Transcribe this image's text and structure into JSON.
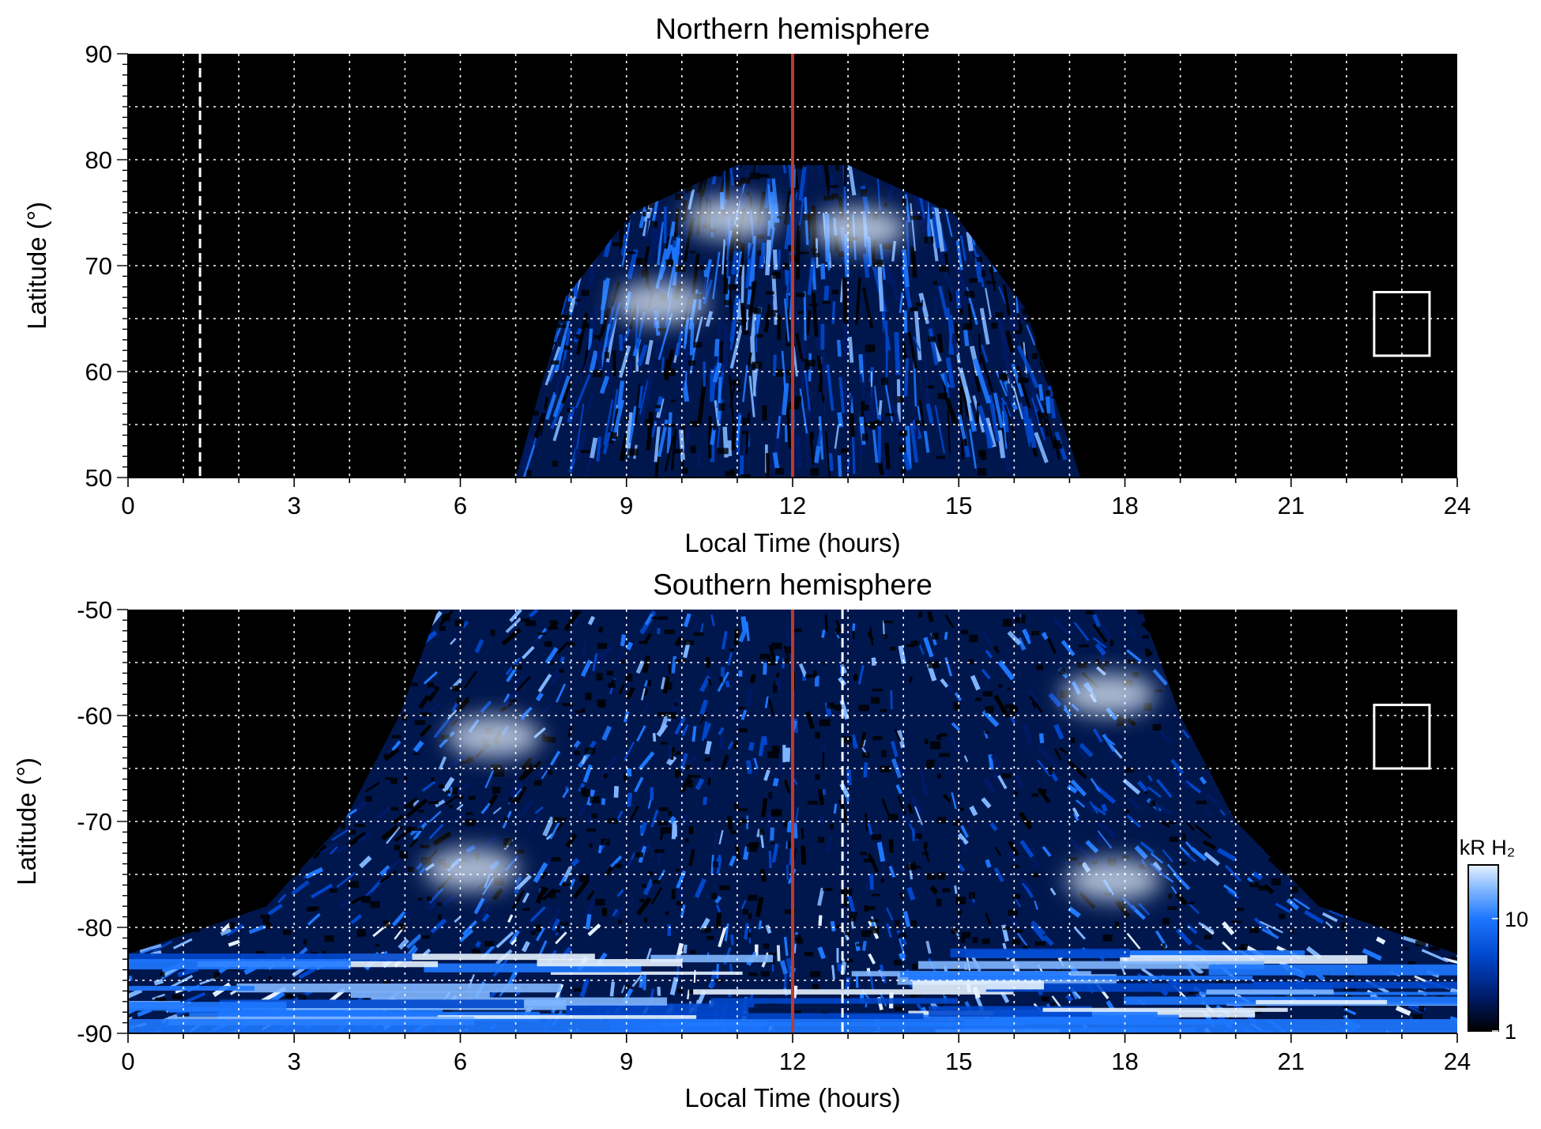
{
  "chart_data": [
    {
      "type": "heatmap",
      "title": "Northern hemisphere",
      "xlabel": "Local Time (hours)",
      "ylabel": "Latitude (°)",
      "xlim": [
        0,
        24
      ],
      "ylim": [
        50,
        90
      ],
      "xticks": [
        "0",
        "3",
        "6",
        "9",
        "12",
        "15",
        "18",
        "21",
        "24"
      ],
      "yticks": [
        "50",
        "60",
        "70",
        "80",
        "90"
      ],
      "grid": true,
      "dark_color": "#000000",
      "emission_region": {
        "local_time_range": [
          7.0,
          17.2
        ],
        "edge_latitudes_deg": [
          50,
          67,
          75,
          79.5,
          79.5,
          75,
          66,
          50
        ],
        "edge_local_times_h": [
          7.0,
          7.9,
          9.1,
          11.0,
          13.0,
          14.9,
          16.2,
          17.2
        ]
      },
      "bright_features": [
        {
          "local_time_h": 9.6,
          "latitude_deg": 66.5,
          "intensity_kR": 30
        },
        {
          "local_time_h": 13.2,
          "latitude_deg": 73.5,
          "intensity_kR": 30
        },
        {
          "local_time_h": 10.9,
          "latitude_deg": 74.5,
          "intensity_kR": 20
        }
      ],
      "reference_lines": [
        {
          "name": "noon",
          "local_time_h": 12.0,
          "color": "#c0392b",
          "style": "solid"
        },
        {
          "local_time_h": 1.3,
          "color": "#ffffff",
          "style": "dashed"
        }
      ],
      "marker_box": {
        "local_time_range": [
          22.5,
          23.5
        ],
        "latitude_range": [
          61.5,
          67.5
        ]
      }
    },
    {
      "type": "heatmap",
      "title": "Southern hemisphere",
      "xlabel": "Local Time (hours)",
      "ylabel": "Latitude (°)",
      "xlim": [
        0,
        24
      ],
      "ylim": [
        -90,
        -50
      ],
      "xticks": [
        "0",
        "3",
        "6",
        "9",
        "12",
        "15",
        "18",
        "21",
        "24"
      ],
      "yticks": [
        "-90",
        "-80",
        "-70",
        "-60",
        "-50"
      ],
      "grid": true,
      "dark_color": "#000000",
      "emission_region": {
        "edge_latitudes_deg": [
          -50,
          -60,
          -70,
          -78,
          -82.5,
          -82.5,
          -78,
          -70,
          -60,
          -50
        ],
        "edge_local_times_h": [
          5.6,
          4.9,
          3.9,
          2.5,
          0.0,
          24.0,
          21.5,
          20.0,
          19.0,
          18.3
        ]
      },
      "bright_features": [
        {
          "local_time_h": 6.2,
          "latitude_deg": -74.5,
          "intensity_kR": 35
        },
        {
          "local_time_h": 17.8,
          "latitude_deg": -75.5,
          "intensity_kR": 30
        },
        {
          "local_time_h": 6.6,
          "latitude_deg": -62.0,
          "intensity_kR": 25
        },
        {
          "local_time_h": 17.7,
          "latitude_deg": -58.0,
          "intensity_kR": 25
        }
      ],
      "reference_lines": [
        {
          "name": "noon",
          "local_time_h": 12.0,
          "color": "#c0392b",
          "style": "solid"
        },
        {
          "local_time_h": 12.9,
          "color": "#ffffff",
          "style": "dashed"
        }
      ],
      "marker_box": {
        "local_time_range": [
          22.5,
          23.5
        ],
        "latitude_range": [
          -65.0,
          -59.0
        ]
      }
    }
  ],
  "colorbar": {
    "label": "kR H₂",
    "scale": "log",
    "range": [
      1,
      30
    ],
    "ticks": [
      "1",
      "10"
    ],
    "colors": [
      "#000000",
      "#001a66",
      "#0047cc",
      "#1e78ff",
      "#7fb6ff",
      "#e6f2ff"
    ]
  }
}
